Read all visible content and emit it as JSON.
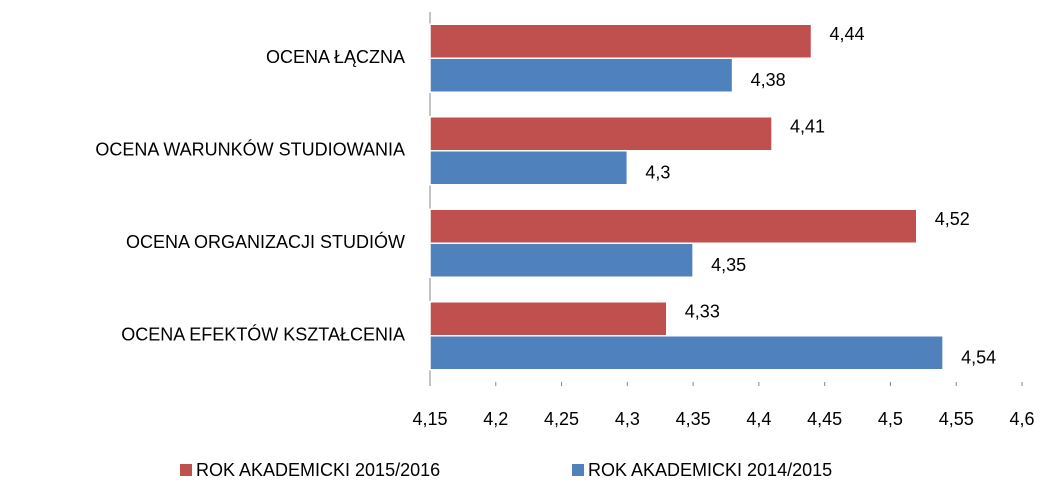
{
  "chart_data": {
    "type": "bar",
    "orientation": "horizontal",
    "categories": [
      "OCENA ŁĄCZNA",
      "OCENA WARUNKÓW STUDIOWANIA",
      "OCENA ORGANIZACJI STUDIÓW",
      "OCENA EFEKTÓW KSZTAŁCENIA"
    ],
    "series": [
      {
        "name": "ROK AKADEMICKI 2015/2016",
        "color": "#c0504d",
        "values": [
          4.44,
          4.41,
          4.52,
          4.33
        ],
        "value_labels": [
          "4,44",
          "4,41",
          "4,52",
          "4,33"
        ]
      },
      {
        "name": "ROK AKADEMICKI 2014/2015",
        "color": "#4f81bd",
        "values": [
          4.38,
          4.3,
          4.35,
          4.54
        ],
        "value_labels": [
          "4,38",
          "4,3",
          "4,35",
          "4,54"
        ]
      }
    ],
    "xlim": [
      4.15,
      4.6
    ],
    "xticks": [
      {
        "value": 4.15,
        "label": "4,15"
      },
      {
        "value": 4.2,
        "label": "4,2"
      },
      {
        "value": 4.25,
        "label": "4,25"
      },
      {
        "value": 4.3,
        "label": "4,3"
      },
      {
        "value": 4.35,
        "label": "4,35"
      },
      {
        "value": 4.4,
        "label": "4,4"
      },
      {
        "value": 4.45,
        "label": "4,45"
      },
      {
        "value": 4.5,
        "label": "4,5"
      },
      {
        "value": 4.55,
        "label": "4,55"
      },
      {
        "value": 4.6,
        "label": "4,6"
      }
    ],
    "grid": false,
    "legend": "bottom"
  }
}
